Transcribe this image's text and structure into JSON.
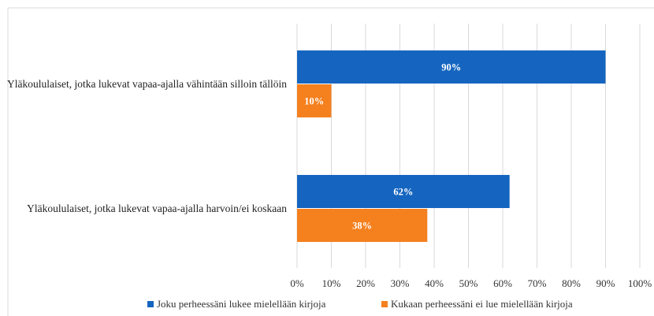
{
  "chart_data": {
    "type": "bar",
    "orientation": "horizontal",
    "title": "",
    "xlabel": "",
    "ylabel": "",
    "categories": [
      "Yläkoululaiset, jotka lukevat vapaa-ajalla vähintään silloin tällöin",
      "Yläkoululaiset, jotka lukevat vapaa-ajalla harvoin/ei koskaan"
    ],
    "series": [
      {
        "name": "Joku perheessäni lukee mielellään kirjoja",
        "color": "#1565C0",
        "values": [
          90,
          62
        ],
        "labels": [
          "90%",
          "62%"
        ]
      },
      {
        "name": "Kukaan perheessäni ei lue mielellään kirjoja",
        "color": "#F5801E",
        "values": [
          10,
          38
        ],
        "labels": [
          "10%",
          "38%"
        ]
      }
    ],
    "xlim": [
      0,
      100
    ],
    "ticks": [
      "0%",
      "10%",
      "20%",
      "30%",
      "40%",
      "50%",
      "60%",
      "70%",
      "80%",
      "90%",
      "100%"
    ],
    "grid": true,
    "legend_position": "bottom"
  }
}
